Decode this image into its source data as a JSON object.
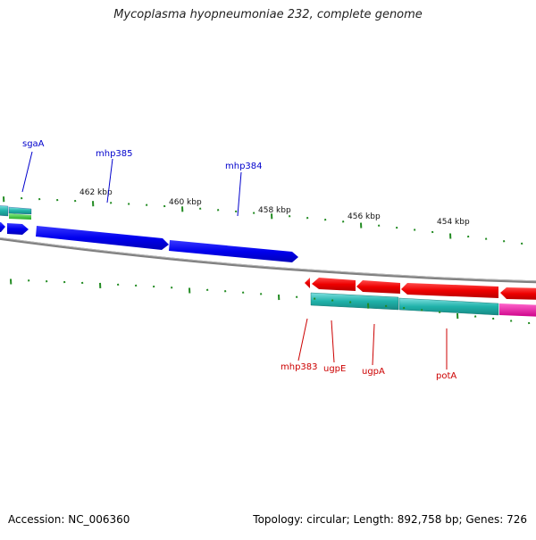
{
  "title": "Mycoplasma hyopneumoniae 232, complete genome",
  "footer": {
    "accession": "Accession: NC_006360",
    "summary": "Topology: circular; Length: 892,758 bp; Genes: 726"
  },
  "colors": {
    "forward_gene": "#0000ee",
    "reverse_gene": "#ee0000",
    "forward_label": "#0000cc",
    "reverse_label": "#cc0000",
    "backbone": "#808080",
    "tick": "#228b22",
    "cds_teal": "#20b2aa",
    "cds_green": "#33cc33",
    "cds_magenta": "#ee1199"
  },
  "scale": {
    "unit": "kbp",
    "labels": [
      {
        "text": "462 kbp",
        "kbp": 462
      },
      {
        "text": "460 kbp",
        "kbp": 460
      },
      {
        "text": "458 kbp",
        "kbp": 458
      },
      {
        "text": "456 kbp",
        "kbp": 456
      },
      {
        "text": "454 kbp",
        "kbp": 454
      }
    ]
  },
  "forward_labels": [
    {
      "text": "sgaA",
      "kbp": 463.6
    },
    {
      "text": "mhp385",
      "kbp": 462.0
    },
    {
      "text": "mhp384",
      "kbp": 459.4
    }
  ],
  "reverse_labels": [
    {
      "text": "mhp383",
      "kbp": 457.9
    },
    {
      "text": "ugpE",
      "kbp": 457.5
    },
    {
      "text": "ugpA",
      "kbp": 456.8
    },
    {
      "text": "potA",
      "kbp": 455.0
    }
  ]
}
